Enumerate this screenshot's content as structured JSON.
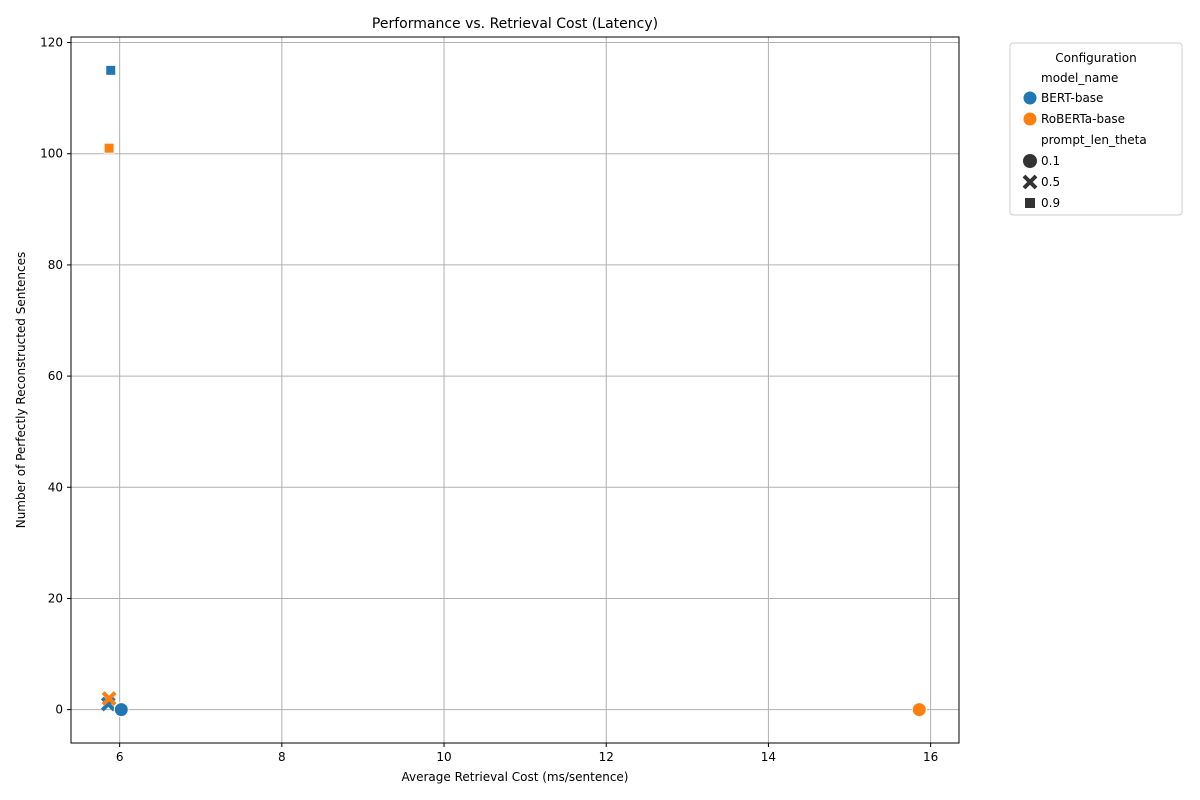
{
  "chart_data": {
    "type": "scatter",
    "title": "Performance vs. Retrieval Cost (Latency)",
    "xlabel": "Average Retrieval Cost (ms/sentence)",
    "ylabel": "Number of Perfectly Reconstructed Sentences",
    "xlim": [
      5.4,
      16.35
    ],
    "ylim": [
      -6,
      121
    ],
    "xticks": [
      6,
      8,
      10,
      12,
      14,
      16
    ],
    "yticks": [
      0,
      20,
      40,
      60,
      80,
      100,
      120
    ],
    "grid": true,
    "legend": {
      "title": "Configuration",
      "placement": "outside upper right",
      "hue_title": "model_name",
      "hue_entries": [
        {
          "label": "BERT-base",
          "color": "#1f77b4"
        },
        {
          "label": "RoBERTa-base",
          "color": "#ff7f0e"
        }
      ],
      "style_title": "prompt_len_theta",
      "style_entries": [
        {
          "label": "0.1",
          "marker": "circle"
        },
        {
          "label": "0.5",
          "marker": "x"
        },
        {
          "label": "0.9",
          "marker": "square"
        }
      ]
    },
    "points": [
      {
        "model": "BERT-base",
        "theta": "0.9",
        "x": 5.89,
        "y": 115
      },
      {
        "model": "RoBERTa-base",
        "theta": "0.9",
        "x": 5.87,
        "y": 101
      },
      {
        "model": "BERT-base",
        "theta": "0.5",
        "x": 5.86,
        "y": 1
      },
      {
        "model": "BERT-base",
        "theta": "0.1",
        "x": 6.02,
        "y": 0
      },
      {
        "model": "RoBERTa-base",
        "theta": "0.5",
        "x": 5.87,
        "y": 2
      },
      {
        "model": "RoBERTa-base",
        "theta": "0.1",
        "x": 15.86,
        "y": 0
      }
    ]
  },
  "colors": {
    "BERT-base": "#1f77b4",
    "RoBERTa-base": "#ff7f0e",
    "grid": "#b0b0b0"
  }
}
